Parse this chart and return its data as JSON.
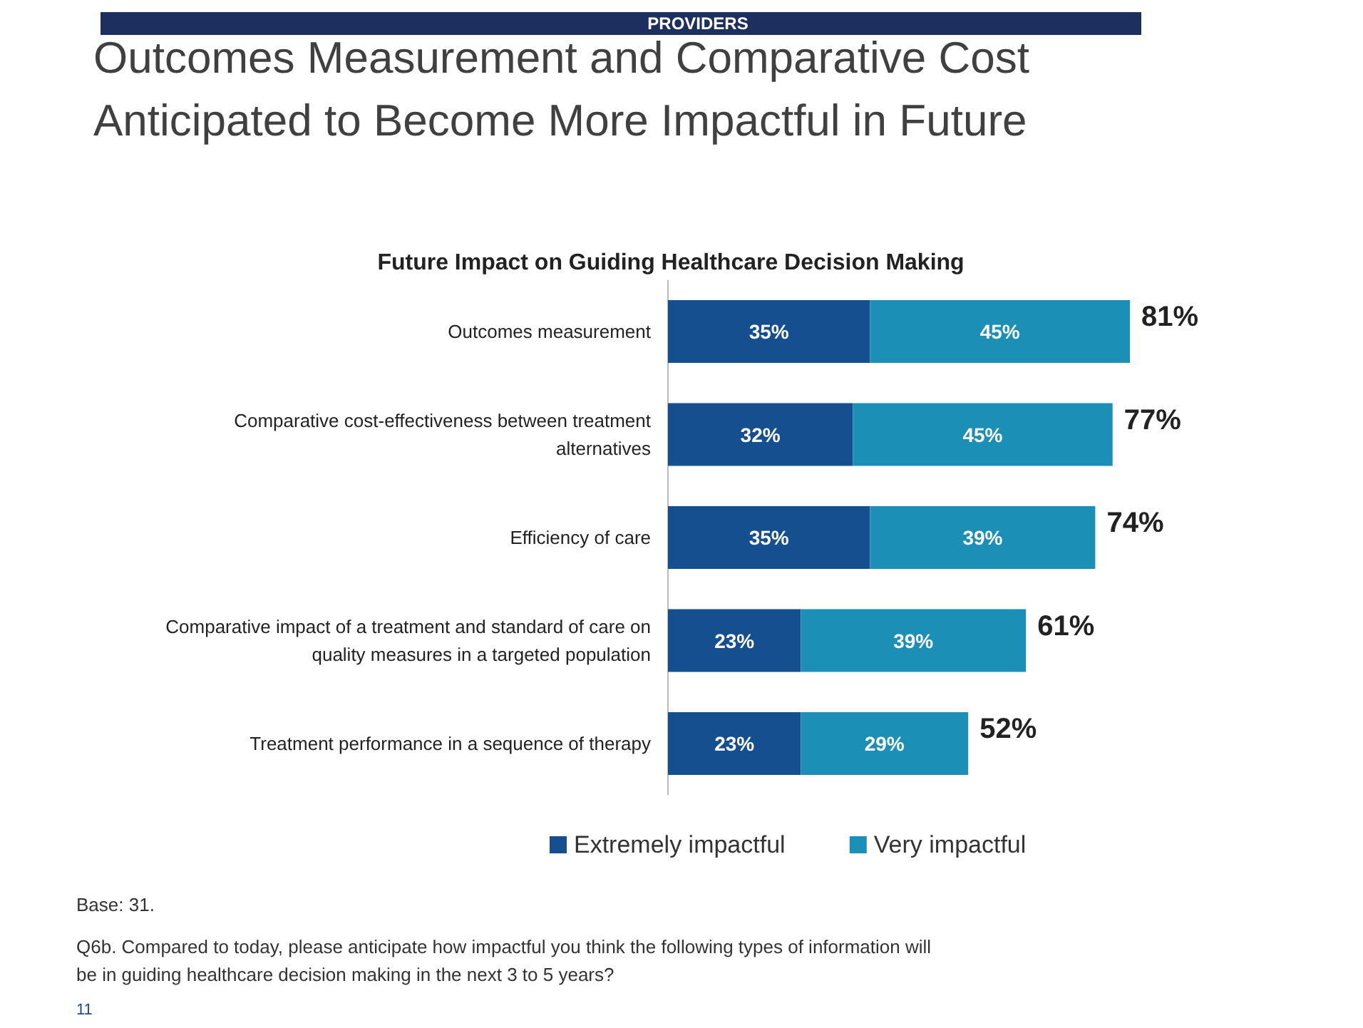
{
  "chart_data": {
    "type": "bar",
    "orientation": "horizontal",
    "stacked": true,
    "title": "Outcomes Measurement and Comparative Cost Anticipated to Become More Impactful in Future",
    "subtitle": "Future Impact on Guiding Healthcare Decision Making",
    "categories": [
      "Outcomes measurement",
      "Comparative cost-effectiveness between treatment alternatives",
      "Efficiency of care",
      "Comparative impact of a treatment and standard of care on quality measures in a targeted population",
      "Treatment performance in a sequence of therapy"
    ],
    "series": [
      {
        "name": "Extremely impactful",
        "color": "#154f8f",
        "values": [
          35,
          32,
          35,
          23,
          23
        ],
        "value_labels": [
          "35%",
          "32%",
          "35%",
          "23%",
          "23%"
        ]
      },
      {
        "name": "Very impactful",
        "color": "#1b8fb6",
        "values": [
          45,
          45,
          39,
          39,
          29
        ],
        "value_labels": [
          "45%",
          "45%",
          "39%",
          "39%",
          "29%"
        ]
      }
    ],
    "totals": [
      "81%",
      "77%",
      "74%",
      "61%",
      "52%"
    ],
    "legend": "bottom",
    "grid": false,
    "annotations": [
      "PROVIDERS",
      "Base: 31.",
      "Q6b. Compared to today, please anticipate how impactful you think the following types of information will be in guiding healthcare decision making in the next 3 to 5 years?",
      "11"
    ]
  }
}
